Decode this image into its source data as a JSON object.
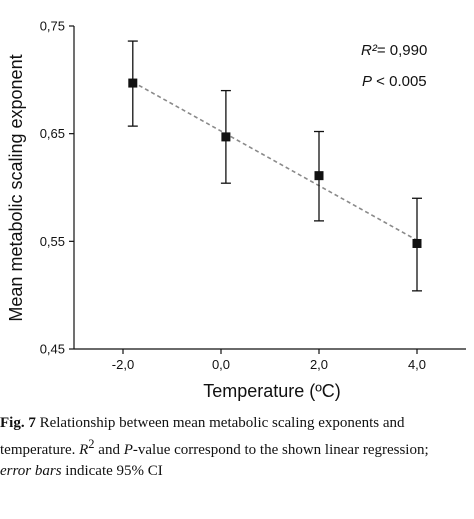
{
  "chart_data": {
    "type": "scatter",
    "ylabel": "Mean metabolic scaling exponent",
    "xlabel": "Temperature (ºC)",
    "xlim": [
      -3.0,
      5.0
    ],
    "ylim": [
      0.45,
      0.75
    ],
    "x_ticks": [
      -2.0,
      0.0,
      2.0,
      4.0
    ],
    "x_tick_labels": [
      "-2,0",
      "0,0",
      "2,0",
      "4,0"
    ],
    "y_ticks": [
      0.45,
      0.55,
      0.65,
      0.75
    ],
    "y_tick_labels": [
      "0,45",
      "0,55",
      "0,65",
      "0,75"
    ],
    "points": [
      {
        "x": -1.8,
        "y": 0.697,
        "ci_low": 0.657,
        "ci_high": 0.736
      },
      {
        "x": 0.1,
        "y": 0.647,
        "ci_low": 0.604,
        "ci_high": 0.69
      },
      {
        "x": 2.0,
        "y": 0.611,
        "ci_low": 0.569,
        "ci_high": 0.652
      },
      {
        "x": 4.0,
        "y": 0.548,
        "ci_low": 0.504,
        "ci_high": 0.59
      }
    ],
    "regression": {
      "x": [
        -1.8,
        4.0
      ],
      "y": [
        0.698,
        0.551
      ],
      "style": "dashed"
    },
    "annotations": {
      "r2_label": "R²",
      "r2_value": "= 0,990",
      "p_label": "P",
      "p_value": " < 0.005"
    },
    "grid": false
  },
  "caption": {
    "fig_label": "Fig. 7",
    "line1_text": "  Relationship between mean metabolic scaling exponents and",
    "line2_start": "temperature. ",
    "line2_r": "R",
    "line2_sup": "2",
    "line2_and": " and ",
    "line2_p": "P",
    "line2_end": "-value correspond to the shown linear regression;",
    "line3_italic": "error bars",
    "line3_end": " indicate 95% CI"
  }
}
